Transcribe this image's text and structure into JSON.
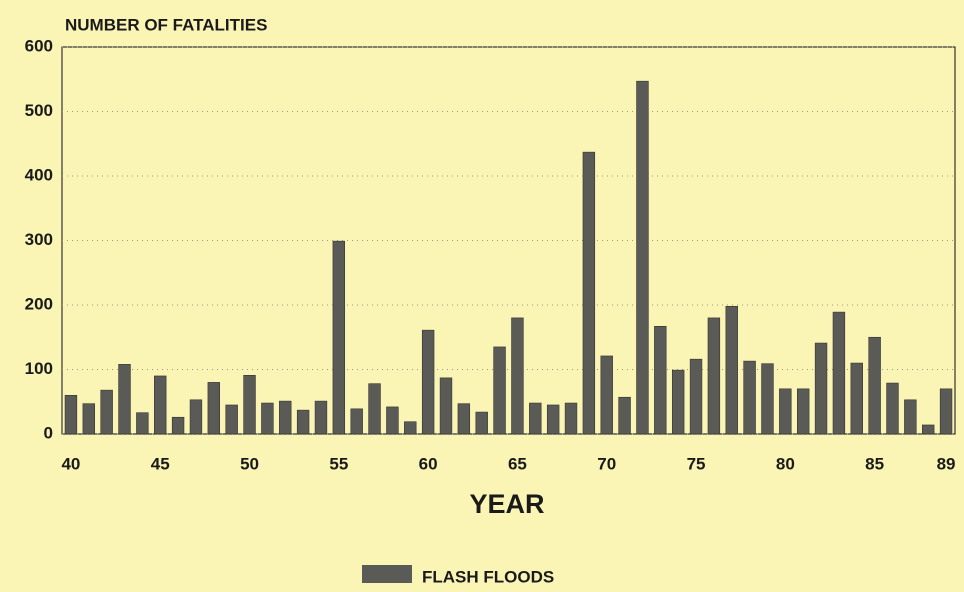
{
  "chart_data": {
    "type": "bar",
    "title": "NUMBER OF FATALITIES",
    "x_label": "YEAR",
    "categories": [
      "40",
      null,
      null,
      null,
      null,
      "45",
      null,
      null,
      null,
      null,
      "50",
      null,
      null,
      null,
      null,
      "55",
      null,
      null,
      null,
      null,
      "60",
      null,
      null,
      null,
      null,
      "65",
      null,
      null,
      null,
      null,
      "70",
      null,
      null,
      null,
      null,
      "75",
      null,
      null,
      null,
      null,
      "80",
      null,
      null,
      null,
      null,
      "85",
      null,
      null,
      null,
      "89"
    ],
    "series": [
      {
        "name": "FLASH FLOODS",
        "color": "#5a5a56",
        "values": [
          60,
          47,
          68,
          108,
          33,
          90,
          26,
          53,
          80,
          45,
          91,
          48,
          51,
          37,
          51,
          299,
          39,
          78,
          42,
          19,
          161,
          87,
          47,
          34,
          135,
          180,
          48,
          45,
          48,
          437,
          121,
          57,
          547,
          167,
          99,
          116,
          180,
          198,
          113,
          109,
          70,
          70,
          141,
          189,
          110,
          150,
          79,
          53,
          14,
          70
        ]
      }
    ],
    "ylim": [
      0,
      600
    ],
    "yticks": [
      0,
      100,
      200,
      300,
      400,
      500,
      600
    ],
    "grid": true,
    "legend": "bottom"
  }
}
